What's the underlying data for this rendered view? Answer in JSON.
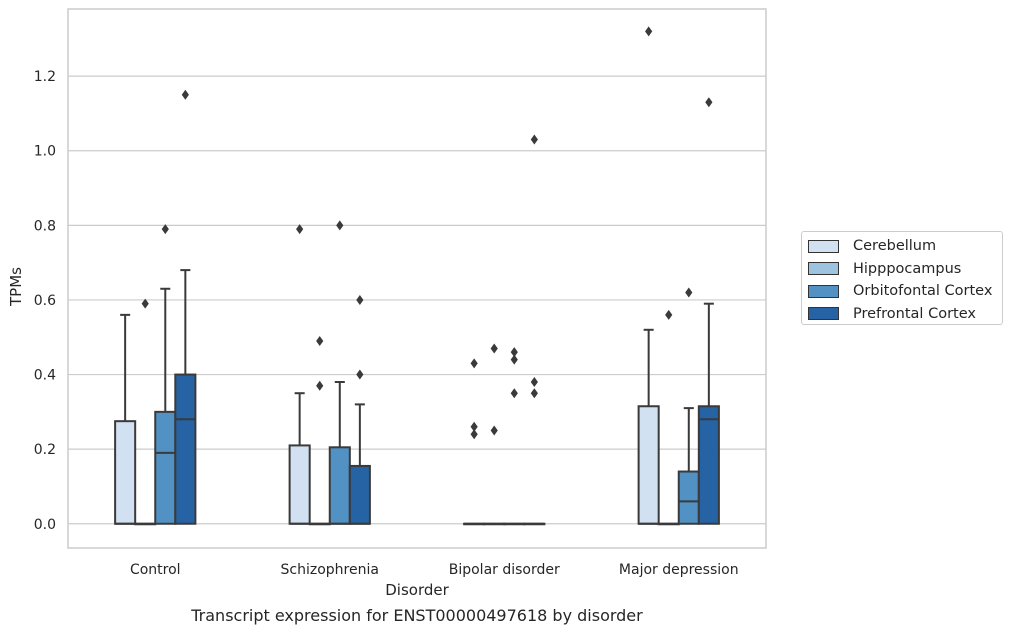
{
  "chart_data": {
    "type": "box",
    "xlabel": "Disorder",
    "ylabel": "TPMs",
    "caption": "Transcript expression for ENST00000497618 by disorder",
    "categories": [
      "Control",
      "Schizophrenia",
      "Bipolar disorder",
      "Major depression"
    ],
    "ylim": [
      -0.065,
      1.38
    ],
    "yticks": [
      0.0,
      0.2,
      0.4,
      0.6,
      0.8,
      1.0,
      1.2
    ],
    "ytick_labels": [
      "0.0",
      "0.2",
      "0.4",
      "0.6",
      "0.8",
      "1.0",
      "1.2"
    ],
    "grid": "horizontal",
    "legend_position": "right",
    "series": [
      {
        "name": "Cerebellum",
        "color": "#d2e1f1",
        "boxes": [
          {
            "q1": 0.0,
            "median": 0.0,
            "q3": 0.275,
            "whisker_low": 0.0,
            "whisker_high": 0.56,
            "outliers": []
          },
          {
            "q1": 0.0,
            "median": 0.0,
            "q3": 0.21,
            "whisker_low": 0.0,
            "whisker_high": 0.35,
            "outliers": [
              0.79
            ]
          },
          {
            "q1": 0.0,
            "median": 0.0,
            "q3": 0.0,
            "whisker_low": 0.0,
            "whisker_high": 0.0,
            "outliers": [
              0.43,
              0.26,
              0.24
            ]
          },
          {
            "q1": 0.0,
            "median": 0.0,
            "q3": 0.315,
            "whisker_low": 0.0,
            "whisker_high": 0.52,
            "outliers": [
              1.32
            ]
          }
        ]
      },
      {
        "name": "Hipppocampus",
        "color": "#9dc3de",
        "boxes": [
          {
            "q1": 0.0,
            "median": 0.0,
            "q3": 0.0,
            "whisker_low": 0.0,
            "whisker_high": 0.0,
            "outliers": [
              0.59
            ]
          },
          {
            "q1": 0.0,
            "median": 0.0,
            "q3": 0.0,
            "whisker_low": 0.0,
            "whisker_high": 0.0,
            "outliers": [
              0.49,
              0.37
            ]
          },
          {
            "q1": 0.0,
            "median": 0.0,
            "q3": 0.0,
            "whisker_low": 0.0,
            "whisker_high": 0.0,
            "outliers": [
              0.47,
              0.25
            ]
          },
          {
            "q1": 0.0,
            "median": 0.0,
            "q3": 0.0,
            "whisker_low": 0.0,
            "whisker_high": 0.0,
            "outliers": [
              0.56
            ]
          }
        ]
      },
      {
        "name": "Orbitofontal Cortex",
        "color": "#5191c3",
        "boxes": [
          {
            "q1": 0.0,
            "median": 0.19,
            "q3": 0.3,
            "whisker_low": 0.0,
            "whisker_high": 0.63,
            "outliers": [
              0.79
            ]
          },
          {
            "q1": 0.0,
            "median": 0.0,
            "q3": 0.205,
            "whisker_low": 0.0,
            "whisker_high": 0.38,
            "outliers": [
              0.8
            ]
          },
          {
            "q1": 0.0,
            "median": 0.0,
            "q3": 0.0,
            "whisker_low": 0.0,
            "whisker_high": 0.0,
            "outliers": [
              0.46,
              0.44,
              0.35
            ]
          },
          {
            "q1": 0.0,
            "median": 0.06,
            "q3": 0.14,
            "whisker_low": 0.0,
            "whisker_high": 0.31,
            "outliers": [
              0.62
            ]
          }
        ]
      },
      {
        "name": "Prefrontal Cortex",
        "color": "#2563a5",
        "boxes": [
          {
            "q1": 0.0,
            "median": 0.28,
            "q3": 0.4,
            "whisker_low": 0.0,
            "whisker_high": 0.68,
            "outliers": [
              1.15
            ]
          },
          {
            "q1": 0.0,
            "median": 0.0,
            "q3": 0.155,
            "whisker_low": 0.0,
            "whisker_high": 0.32,
            "outliers": [
              0.6,
              0.4
            ]
          },
          {
            "q1": 0.0,
            "median": 0.0,
            "q3": 0.0,
            "whisker_low": 0.0,
            "whisker_high": 0.0,
            "outliers": [
              1.03,
              0.38,
              0.35
            ]
          },
          {
            "q1": 0.0,
            "median": 0.28,
            "q3": 0.315,
            "whisker_low": 0.0,
            "whisker_high": 0.59,
            "outliers": [
              1.13
            ]
          }
        ]
      }
    ]
  }
}
